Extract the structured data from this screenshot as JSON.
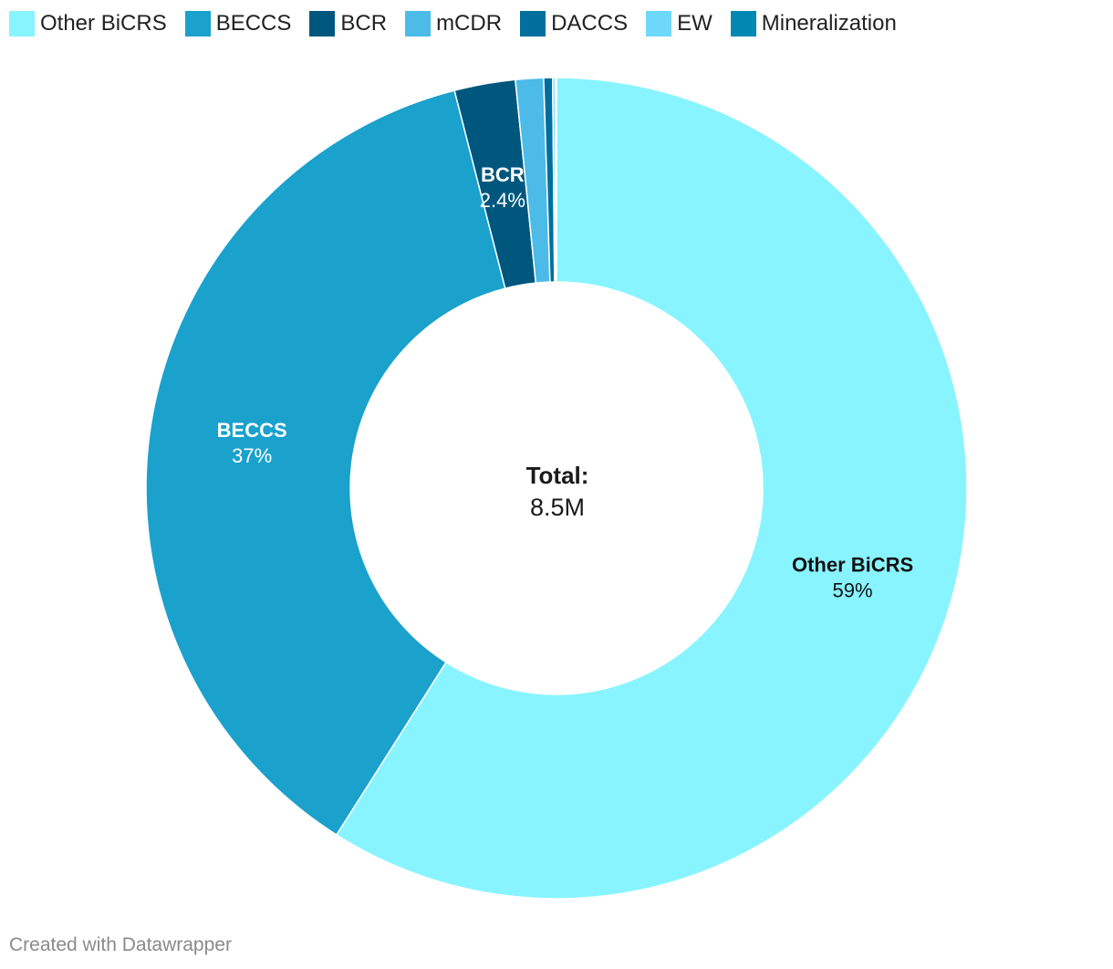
{
  "chart_data": {
    "type": "donut",
    "title": "",
    "center_label": {
      "title": "Total:",
      "value": "8.5M"
    },
    "slices": [
      {
        "name": "Other BiCRS",
        "value": 59.0,
        "label_pct": "59%",
        "color": "#88f4ff",
        "label_color": "#111111",
        "show_label": true
      },
      {
        "name": "BECCS",
        "value": 37.0,
        "label_pct": "37%",
        "color": "#1aa1cc",
        "label_color": "#ffffff",
        "show_label": true
      },
      {
        "name": "BCR",
        "value": 2.4,
        "label_pct": "2.4%",
        "color": "#00577e",
        "label_color": "#ffffff",
        "show_label": true
      },
      {
        "name": "mCDR",
        "value": 1.1,
        "label_pct": "",
        "color": "#4cbbe8",
        "label_color": "#ffffff",
        "show_label": false
      },
      {
        "name": "DACCS",
        "value": 0.35,
        "label_pct": "",
        "color": "#006f9e",
        "label_color": "#ffffff",
        "show_label": false
      },
      {
        "name": "EW",
        "value": 0.1,
        "label_pct": "",
        "color": "#6ed8fa",
        "label_color": "#ffffff",
        "show_label": false
      },
      {
        "name": "Mineralization",
        "value": 0.05,
        "label_pct": "",
        "color": "#0088b3",
        "label_color": "#ffffff",
        "show_label": false
      }
    ],
    "legend_position": "top-left"
  },
  "footer": {
    "credit": "Created with Datawrapper"
  }
}
